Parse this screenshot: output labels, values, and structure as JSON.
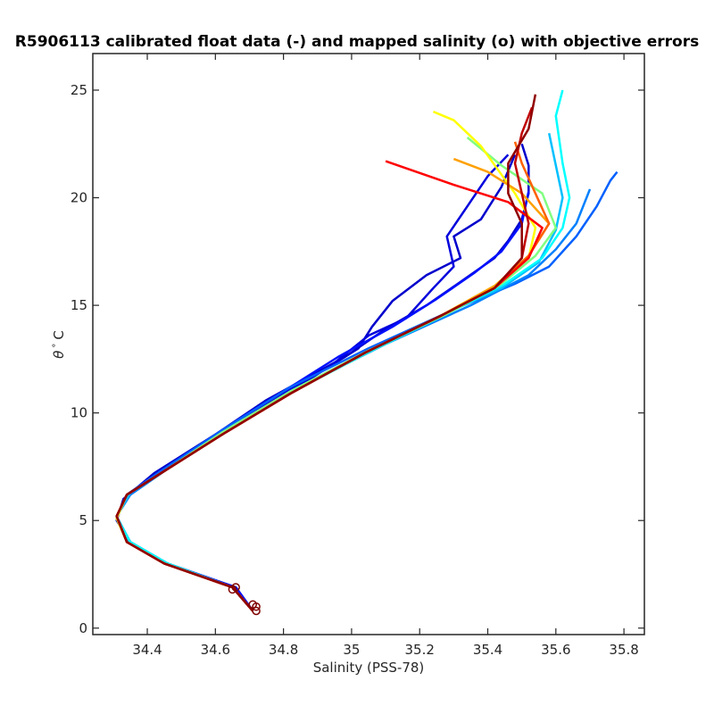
{
  "chart_data": {
    "type": "line",
    "title": "R5906113 calibrated float data (-) and mapped salinity (o) with objective errors",
    "xlabel": "Salinity (PSS-78)",
    "ylabel_symbol": "θ",
    "ylabel_degree": "°",
    "ylabel_unit": "C",
    "xlim": [
      34.24,
      35.86
    ],
    "ylim": [
      -0.3,
      26.7
    ],
    "xticks": [
      "34.4",
      "34.6",
      "34.8",
      "35",
      "35.2",
      "35.4",
      "35.6",
      "35.8"
    ],
    "yticks": [
      "0",
      "5",
      "10",
      "15",
      "20",
      "25"
    ],
    "grid": false,
    "colormap": [
      "#00008f",
      "#0000ff",
      "#0080ff",
      "#00ffff",
      "#80ff80",
      "#ffff00",
      "#ff8000",
      "#ff0000",
      "#800000"
    ],
    "series": [
      {
        "color": "#0000cc",
        "values": [
          [
            34.71,
            0.8
          ],
          [
            34.66,
            1.9
          ],
          [
            34.45,
            3.0
          ],
          [
            34.35,
            4.0
          ],
          [
            34.31,
            5.0
          ],
          [
            34.33,
            6.0
          ],
          [
            34.42,
            7.2
          ],
          [
            34.6,
            9.0
          ],
          [
            34.75,
            10.6
          ],
          [
            34.98,
            12.6
          ],
          [
            35.1,
            13.9
          ],
          [
            35.22,
            15.0
          ],
          [
            35.33,
            16.2
          ],
          [
            35.42,
            17.2
          ],
          [
            35.46,
            18.0
          ],
          [
            35.5,
            19.0
          ],
          [
            35.52,
            20.2
          ],
          [
            35.52,
            21.5
          ],
          [
            35.5,
            22.5
          ]
        ]
      },
      {
        "color": "#0000cc",
        "values": [
          [
            34.71,
            0.8
          ],
          [
            34.65,
            1.9
          ],
          [
            34.45,
            3.0
          ],
          [
            34.34,
            4.1
          ],
          [
            34.31,
            5.2
          ],
          [
            34.34,
            6.1
          ],
          [
            34.43,
            7.1
          ],
          [
            34.58,
            8.6
          ],
          [
            34.72,
            10.1
          ],
          [
            34.88,
            11.6
          ],
          [
            35.02,
            13.0
          ],
          [
            35.06,
            14.0
          ],
          [
            35.12,
            15.2
          ],
          [
            35.22,
            16.4
          ],
          [
            35.32,
            17.2
          ],
          [
            35.3,
            18.2
          ],
          [
            35.38,
            19.0
          ],
          [
            35.44,
            20.5
          ],
          [
            35.48,
            22.0
          ]
        ]
      },
      {
        "color": "#0000dd",
        "values": [
          [
            34.71,
            0.8
          ],
          [
            34.65,
            1.9
          ],
          [
            34.45,
            3.0
          ],
          [
            34.34,
            4.1
          ],
          [
            34.31,
            5.2
          ],
          [
            34.34,
            6.1
          ],
          [
            34.43,
            7.1
          ],
          [
            34.6,
            8.8
          ],
          [
            34.76,
            10.6
          ],
          [
            34.94,
            12.2
          ],
          [
            35.05,
            13.6
          ],
          [
            35.16,
            14.4
          ],
          [
            35.24,
            15.8
          ],
          [
            35.3,
            16.8
          ],
          [
            35.28,
            18.2
          ],
          [
            35.34,
            19.6
          ],
          [
            35.4,
            21.0
          ],
          [
            35.46,
            22.0
          ]
        ]
      },
      {
        "color": "#0010ff",
        "values": [
          [
            34.71,
            0.8
          ],
          [
            34.66,
            1.9
          ],
          [
            34.46,
            3.0
          ],
          [
            34.35,
            4.0
          ],
          [
            34.31,
            5.1
          ],
          [
            34.34,
            6.2
          ],
          [
            34.44,
            7.3
          ],
          [
            34.62,
            9.2
          ],
          [
            34.8,
            11.0
          ],
          [
            34.96,
            12.6
          ],
          [
            35.12,
            14.0
          ],
          [
            35.25,
            15.3
          ],
          [
            35.36,
            16.5
          ],
          [
            35.44,
            17.5
          ],
          [
            35.5,
            18.8
          ],
          [
            35.52,
            20.3
          ]
        ]
      },
      {
        "color": "#0060ff",
        "values": [
          [
            34.71,
            0.8
          ],
          [
            34.65,
            1.9
          ],
          [
            34.46,
            3.0
          ],
          [
            34.35,
            4.0
          ],
          [
            34.31,
            5.1
          ],
          [
            34.34,
            6.2
          ],
          [
            34.44,
            7.3
          ],
          [
            34.62,
            9.2
          ],
          [
            34.82,
            11.2
          ],
          [
            35.05,
            13.0
          ],
          [
            35.3,
            14.8
          ],
          [
            35.48,
            16.0
          ],
          [
            35.58,
            16.8
          ],
          [
            35.66,
            18.2
          ],
          [
            35.72,
            19.6
          ],
          [
            35.76,
            20.8
          ],
          [
            35.78,
            21.2
          ]
        ]
      },
      {
        "color": "#0080ff",
        "values": [
          [
            34.71,
            0.8
          ],
          [
            34.65,
            1.9
          ],
          [
            34.45,
            3.0
          ],
          [
            34.34,
            4.1
          ],
          [
            34.31,
            5.2
          ],
          [
            34.35,
            6.2
          ],
          [
            34.46,
            7.4
          ],
          [
            34.65,
            9.4
          ],
          [
            34.86,
            11.3
          ],
          [
            35.1,
            13.2
          ],
          [
            35.35,
            15.0
          ],
          [
            35.52,
            16.4
          ],
          [
            35.6,
            17.6
          ],
          [
            35.66,
            18.8
          ],
          [
            35.7,
            20.4
          ]
        ]
      },
      {
        "color": "#00c0ff",
        "values": [
          [
            34.71,
            0.8
          ],
          [
            34.65,
            1.9
          ],
          [
            34.46,
            3.0
          ],
          [
            34.35,
            4.0
          ],
          [
            34.31,
            5.2
          ],
          [
            34.35,
            6.3
          ],
          [
            34.46,
            7.4
          ],
          [
            34.63,
            9.1
          ],
          [
            34.82,
            11.0
          ],
          [
            35.04,
            12.8
          ],
          [
            35.26,
            14.5
          ],
          [
            35.44,
            15.8
          ],
          [
            35.55,
            17.0
          ],
          [
            35.6,
            18.5
          ],
          [
            35.62,
            20.0
          ],
          [
            35.6,
            21.5
          ],
          [
            35.58,
            23.0
          ]
        ]
      },
      {
        "color": "#00ffff",
        "values": [
          [
            34.71,
            0.8
          ],
          [
            34.65,
            1.9
          ],
          [
            34.46,
            3.0
          ],
          [
            34.35,
            4.0
          ],
          [
            34.31,
            5.1
          ],
          [
            34.34,
            6.2
          ],
          [
            34.45,
            7.3
          ],
          [
            34.63,
            9.1
          ],
          [
            34.83,
            11.0
          ],
          [
            35.06,
            12.9
          ],
          [
            35.28,
            14.6
          ],
          [
            35.45,
            16.0
          ],
          [
            35.56,
            17.2
          ],
          [
            35.62,
            18.6
          ],
          [
            35.64,
            20.0
          ],
          [
            35.62,
            21.6
          ],
          [
            35.6,
            23.8
          ],
          [
            35.62,
            25.0
          ]
        ]
      },
      {
        "color": "#80ff80",
        "values": [
          [
            34.71,
            0.8
          ],
          [
            34.65,
            1.9
          ],
          [
            34.45,
            3.0
          ],
          [
            34.34,
            4.0
          ],
          [
            34.31,
            5.1
          ],
          [
            34.34,
            6.2
          ],
          [
            34.45,
            7.3
          ],
          [
            34.62,
            9.1
          ],
          [
            34.82,
            11.0
          ],
          [
            35.05,
            12.9
          ],
          [
            35.28,
            14.6
          ],
          [
            35.44,
            16.0
          ],
          [
            35.54,
            17.3
          ],
          [
            35.6,
            18.6
          ],
          [
            35.56,
            20.2
          ],
          [
            35.44,
            21.5
          ],
          [
            35.34,
            22.8
          ]
        ]
      },
      {
        "color": "#ffff00",
        "values": [
          [
            34.71,
            0.8
          ],
          [
            34.65,
            1.9
          ],
          [
            34.45,
            3.0
          ],
          [
            34.34,
            4.0
          ],
          [
            34.31,
            5.1
          ],
          [
            34.34,
            6.2
          ],
          [
            34.45,
            7.3
          ],
          [
            34.62,
            9.0
          ],
          [
            34.82,
            10.9
          ],
          [
            35.04,
            12.8
          ],
          [
            35.26,
            14.5
          ],
          [
            35.42,
            15.9
          ],
          [
            35.52,
            17.2
          ],
          [
            35.54,
            18.6
          ],
          [
            35.48,
            20.2
          ],
          [
            35.38,
            22.4
          ],
          [
            35.3,
            23.6
          ],
          [
            35.24,
            24.0
          ]
        ]
      },
      {
        "color": "#ffa000",
        "values": [
          [
            34.71,
            0.8
          ],
          [
            34.65,
            1.9
          ],
          [
            34.45,
            3.0
          ],
          [
            34.34,
            4.0
          ],
          [
            34.31,
            5.2
          ],
          [
            34.34,
            6.2
          ],
          [
            34.45,
            7.3
          ],
          [
            34.62,
            9.0
          ],
          [
            34.82,
            10.9
          ],
          [
            35.04,
            12.8
          ],
          [
            35.26,
            14.5
          ],
          [
            35.42,
            15.9
          ],
          [
            35.52,
            17.3
          ],
          [
            35.58,
            18.8
          ],
          [
            35.5,
            20.2
          ],
          [
            35.4,
            21.2
          ],
          [
            35.3,
            21.8
          ]
        ]
      },
      {
        "color": "#ff6000",
        "values": [
          [
            34.71,
            0.8
          ],
          [
            34.65,
            1.9
          ],
          [
            34.45,
            3.0
          ],
          [
            34.34,
            4.0
          ],
          [
            34.31,
            5.2
          ],
          [
            34.34,
            6.2
          ],
          [
            34.45,
            7.3
          ],
          [
            34.62,
            9.0
          ],
          [
            34.82,
            10.9
          ],
          [
            35.04,
            12.8
          ],
          [
            35.26,
            14.5
          ],
          [
            35.42,
            15.8
          ],
          [
            35.52,
            17.3
          ],
          [
            35.58,
            18.8
          ],
          [
            35.54,
            20.2
          ],
          [
            35.5,
            21.6
          ],
          [
            35.48,
            22.6
          ]
        ]
      },
      {
        "color": "#ff0000",
        "values": [
          [
            34.71,
            0.8
          ],
          [
            34.65,
            1.9
          ],
          [
            34.45,
            3.0
          ],
          [
            34.34,
            4.0
          ],
          [
            34.31,
            5.2
          ],
          [
            34.34,
            6.2
          ],
          [
            34.45,
            7.3
          ],
          [
            34.62,
            9.0
          ],
          [
            34.82,
            10.9
          ],
          [
            35.04,
            12.8
          ],
          [
            35.26,
            14.5
          ],
          [
            35.42,
            15.8
          ],
          [
            35.52,
            17.2
          ],
          [
            35.56,
            18.6
          ],
          [
            35.46,
            19.8
          ],
          [
            35.3,
            20.6
          ],
          [
            35.1,
            21.7
          ]
        ]
      },
      {
        "color": "#c00000",
        "values": [
          [
            34.71,
            0.8
          ],
          [
            34.65,
            1.9
          ],
          [
            34.45,
            3.0
          ],
          [
            34.34,
            4.0
          ],
          [
            34.31,
            5.2
          ],
          [
            34.34,
            6.2
          ],
          [
            34.45,
            7.3
          ],
          [
            34.62,
            9.0
          ],
          [
            34.82,
            10.9
          ],
          [
            35.04,
            12.8
          ],
          [
            35.26,
            14.5
          ],
          [
            35.42,
            15.8
          ],
          [
            35.5,
            17.2
          ],
          [
            35.52,
            18.8
          ],
          [
            35.5,
            20.2
          ],
          [
            35.48,
            21.6
          ],
          [
            35.5,
            23.0
          ],
          [
            35.53,
            24.2
          ]
        ]
      },
      {
        "color": "#900000",
        "values": [
          [
            34.71,
            0.8
          ],
          [
            34.65,
            1.9
          ],
          [
            34.45,
            3.0
          ],
          [
            34.34,
            4.0
          ],
          [
            34.31,
            5.2
          ],
          [
            34.34,
            6.2
          ],
          [
            34.45,
            7.3
          ],
          [
            34.62,
            9.0
          ],
          [
            34.82,
            10.9
          ],
          [
            35.04,
            12.8
          ],
          [
            35.26,
            14.5
          ],
          [
            35.42,
            15.8
          ],
          [
            35.5,
            17.2
          ],
          [
            35.5,
            18.8
          ],
          [
            35.46,
            20.2
          ],
          [
            35.46,
            21.6
          ],
          [
            35.52,
            23.2
          ],
          [
            35.54,
            24.8
          ]
        ]
      }
    ],
    "mapped_points": [
      [
        34.72,
        0.8
      ],
      [
        34.71,
        1.1
      ],
      [
        34.72,
        1.0
      ],
      [
        34.65,
        1.8
      ],
      [
        34.66,
        1.9
      ]
    ]
  }
}
